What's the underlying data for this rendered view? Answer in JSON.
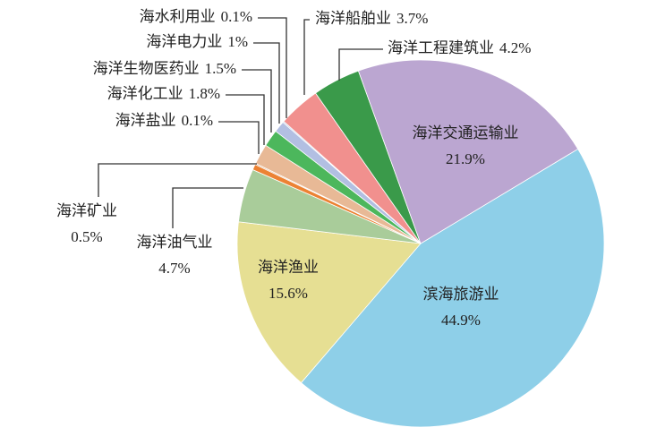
{
  "chart_data": {
    "type": "pie",
    "categories": [
      "滨海旅游业",
      "海洋渔业",
      "海洋油气业",
      "海洋矿业",
      "海洋盐业",
      "海洋化工业",
      "海洋生物医药业",
      "海洋电力业",
      "海水利用业",
      "海洋船舶业",
      "海洋工程建筑业",
      "海洋交通运输业"
    ],
    "values": [
      44.9,
      15.6,
      4.7,
      0.5,
      0.1,
      1.8,
      1.5,
      1,
      0.1,
      3.7,
      4.2,
      21.9
    ],
    "value_labels": [
      "44.9%",
      "15.6%",
      "4.7%",
      "0.5%",
      "0.1%",
      "1.8%",
      "1.5%",
      "1%",
      "0.1%",
      "3.7%",
      "4.2%",
      "21.9%"
    ],
    "colors": [
      "#8ecfe8",
      "#e6df93",
      "#a9cc9a",
      "#ec8233",
      "#d8a070",
      "#e8b996",
      "#4cb75c",
      "#b2bfe2",
      "#9fb8dd",
      "#f1908e",
      "#3a9a4a",
      "#bba6d1"
    ]
  }
}
